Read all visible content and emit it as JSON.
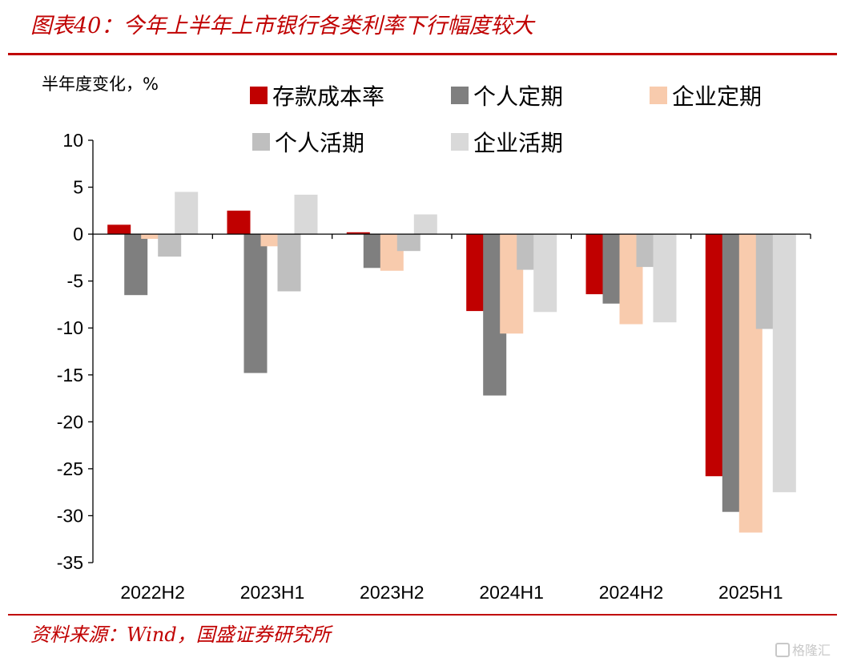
{
  "title": "图表40：今年上半年上市银行各类利率下行幅度较大",
  "source": "资料来源：Wind，国盛证券研究所",
  "watermark": "格隆汇",
  "chart_data": {
    "type": "bar",
    "ylabel": "半年度变化，%",
    "ylim": [
      -35,
      10
    ],
    "yticks": [
      10,
      5,
      0,
      -5,
      -10,
      -15,
      -20,
      -25,
      -30,
      -35
    ],
    "ytick_labels": [
      "10",
      "5",
      "0",
      "-5",
      "-10",
      "-15",
      "-20",
      "-25",
      "-30",
      "-35"
    ],
    "categories": [
      "2022H2",
      "2023H1",
      "2023H2",
      "2024H1",
      "2024H2",
      "2025H1"
    ],
    "legend_position": "top",
    "grid": false,
    "series": [
      {
        "name": "存款成本率",
        "color": "#c00000",
        "values": [
          1.0,
          2.5,
          0.2,
          -8.2,
          -6.4,
          -25.8
        ]
      },
      {
        "name": "个人定期",
        "color": "#7f7f7f",
        "values": [
          -6.5,
          -14.8,
          -3.6,
          -17.2,
          -7.4,
          -29.6
        ]
      },
      {
        "name": "企业定期",
        "color": "#f8cbad",
        "values": [
          -0.5,
          -1.3,
          -3.9,
          -10.6,
          -9.6,
          -31.8
        ]
      },
      {
        "name": "个人活期",
        "color": "#bfbfbf",
        "values": [
          -2.4,
          -6.1,
          -1.8,
          -3.8,
          -3.5,
          -10.1
        ]
      },
      {
        "name": "企业活期",
        "color": "#d9d9d9",
        "values": [
          4.5,
          4.2,
          2.1,
          -8.3,
          -9.4,
          -27.5
        ]
      }
    ]
  }
}
